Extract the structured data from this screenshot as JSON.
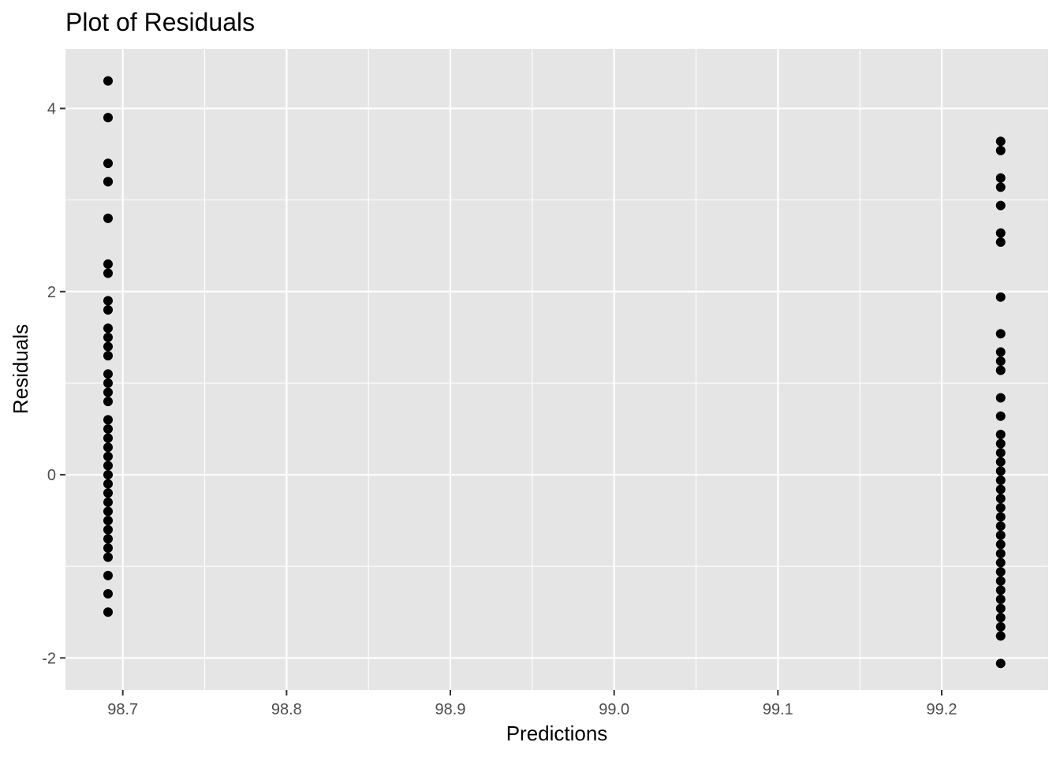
{
  "chart_data": {
    "type": "scatter",
    "title": "Plot of Residuals",
    "xlabel": "Predictions",
    "ylabel": "Residuals",
    "xlim": [
      98.665,
      99.265
    ],
    "ylim": [
      -2.35,
      4.65
    ],
    "x_ticks": [
      98.7,
      98.8,
      98.9,
      99.0,
      99.1,
      99.2
    ],
    "x_tick_labels": [
      "98.7",
      "98.8",
      "98.9",
      "99.0",
      "99.1",
      "99.2"
    ],
    "y_ticks": [
      -2,
      0,
      2,
      4
    ],
    "y_tick_labels": [
      "-2",
      "0",
      "2",
      "4"
    ],
    "grid": true,
    "legend": "none",
    "colors": {
      "panel": "#e5e5e5",
      "grid": "#ffffff",
      "point": "#000000",
      "tick": "#333333"
    },
    "series": [
      {
        "x": 98.691,
        "values": [
          4.3,
          3.9,
          3.4,
          3.2,
          3.2,
          2.8,
          2.3,
          2.2,
          1.9,
          1.8,
          1.6,
          1.5,
          1.4,
          1.3,
          1.1,
          1.0,
          0.9,
          0.8,
          0.6,
          0.5,
          0.4,
          0.3,
          0.2,
          0.1,
          0.0,
          -0.1,
          -0.2,
          -0.3,
          -0.4,
          -0.5,
          -0.6,
          -0.7,
          -0.8,
          -0.9,
          -1.1,
          -1.3,
          -1.5
        ]
      },
      {
        "x": 99.236,
        "values": [
          3.64,
          3.54,
          3.24,
          3.14,
          2.94,
          2.64,
          2.54,
          1.94,
          1.54,
          1.34,
          1.24,
          1.14,
          0.84,
          0.64,
          0.44,
          0.34,
          0.24,
          0.14,
          0.04,
          -0.06,
          -0.16,
          -0.26,
          -0.36,
          -0.46,
          -0.56,
          -0.66,
          -0.76,
          -0.86,
          -0.96,
          -1.06,
          -1.16,
          -1.26,
          -1.36,
          -1.46,
          -1.56,
          -1.66,
          -1.76,
          -2.06
        ]
      }
    ]
  }
}
